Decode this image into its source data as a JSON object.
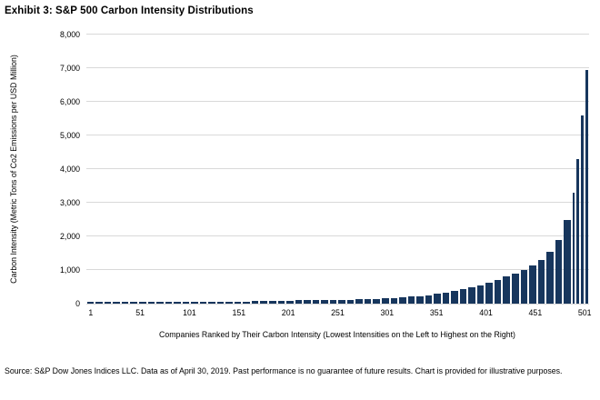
{
  "page": {
    "title": "Exhibit 3: S&P 500 Carbon Intensity Distributions",
    "footer": "Source: S&P Dow Jones Indices LLC. Data as of April 30, 2019. Past performance is no guarantee of future results. Chart is provided for illustrative purposes."
  },
  "chart_data": {
    "type": "bar",
    "title": "Exhibit 3: S&P 500 Carbon Intensity Distributions",
    "xlabel": "Companies Ranked by Their Carbon Intensity (Lowest Intensities on the Left to Highest on the Right)",
    "ylabel": "Carbon Intensity (Metric Tons of Co2 Emissions per USD Million)",
    "x_range": [
      1,
      501
    ],
    "x_ticks": [
      1,
      51,
      101,
      151,
      201,
      251,
      301,
      351,
      401,
      451,
      501
    ],
    "y_ticks": [
      0,
      1000,
      2000,
      3000,
      4000,
      5000,
      6000,
      7000,
      8000
    ],
    "ylim": [
      0,
      8000
    ],
    "grid": "horizontal",
    "legend": "none",
    "bar_color": "#17365D",
    "gridline_color": "#D9D9D9",
    "values": [
      18,
      20,
      22,
      24,
      26,
      28,
      30,
      32,
      34,
      36,
      38,
      40,
      42,
      44,
      46,
      48,
      52,
      58,
      64,
      70,
      76,
      82,
      87,
      92,
      97,
      102,
      106,
      110,
      114,
      118,
      122,
      128,
      136,
      146,
      158,
      172,
      188,
      205,
      225,
      250,
      285,
      330,
      380,
      440,
      490,
      550,
      620,
      700,
      800,
      900,
      1000,
      1130,
      1300,
      1550,
      1900,
      2500,
      3300,
      4300,
      5600,
      6950
    ],
    "narrow_tail_bars": 4
  }
}
